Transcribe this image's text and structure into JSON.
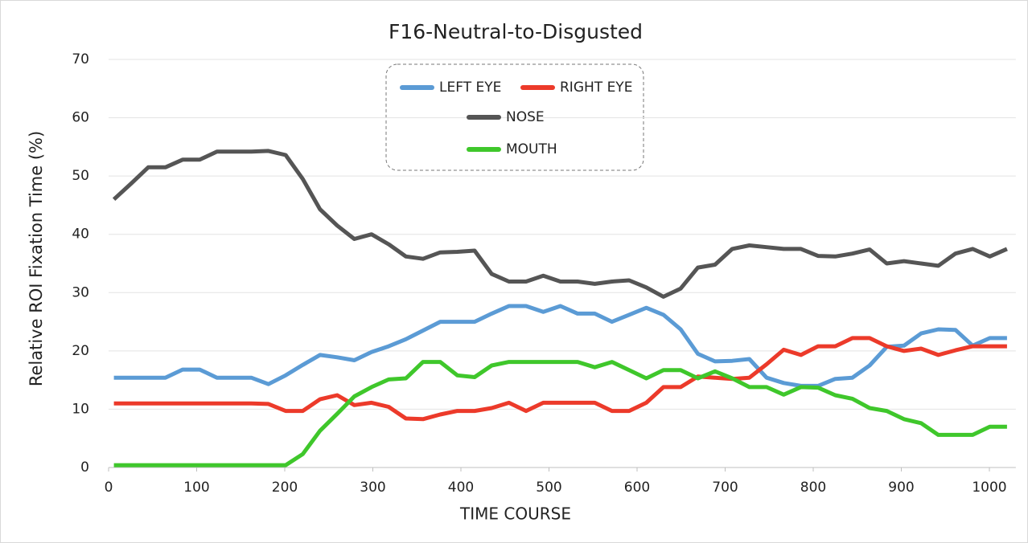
{
  "chart_data": {
    "type": "line",
    "title": "F16-Neutral-to-Disgusted",
    "x_label": "TIME  COURSE",
    "y_label": "Relative  ROI  Fixation  Time  (%)",
    "x": [
      6,
      25.5,
      45,
      64.5,
      84,
      103.5,
      123,
      142.5,
      162,
      181.5,
      201,
      220.5,
      240,
      259.5,
      279,
      298.5,
      318,
      337.5,
      357,
      376.5,
      396,
      415.5,
      435,
      454.5,
      474,
      493.5,
      513,
      532.5,
      552,
      571.5,
      591,
      610.5,
      630,
      649.5,
      669,
      688.5,
      708,
      727.5,
      747,
      766.5,
      786,
      805.5,
      825,
      844.5,
      864,
      883.5,
      903,
      922.5,
      942,
      961.5,
      981,
      1000.5,
      1020
    ],
    "series": [
      {
        "name": "LEFT EYE",
        "color": "#5b9bd5",
        "values": [
          15.4,
          15.4,
          15.4,
          15.4,
          16.8,
          16.8,
          15.4,
          15.4,
          15.4,
          14.3,
          15.8,
          17.6,
          19.3,
          18.9,
          18.4,
          19.8,
          20.8,
          22,
          23.5,
          25,
          25,
          25,
          26.4,
          27.7,
          27.7,
          26.7,
          27.7,
          26.4,
          26.4,
          25,
          26.2,
          27.4,
          26.2,
          23.7,
          19.5,
          18.2,
          18.3,
          18.6,
          15.4,
          14.5,
          14,
          14,
          15.2,
          15.4,
          17.5,
          20.7,
          20.9,
          23,
          23.7,
          23.6,
          20.9,
          22.2,
          22.2
        ]
      },
      {
        "name": "RIGHT EYE",
        "color": "#ec3a2a",
        "values": [
          11,
          11,
          11,
          11,
          11,
          11,
          11,
          11,
          11,
          10.9,
          9.7,
          9.7,
          11.7,
          12.4,
          10.7,
          11.1,
          10.4,
          8.4,
          8.3,
          9.1,
          9.7,
          9.7,
          10.2,
          11.1,
          9.7,
          11.1,
          11.1,
          11.1,
          11.1,
          9.7,
          9.7,
          11.1,
          13.8,
          13.8,
          15.6,
          15.4,
          15.2,
          15.4,
          17.7,
          20.2,
          19.3,
          20.8,
          20.8,
          22.2,
          22.2,
          20.8,
          20,
          20.4,
          19.3,
          20.1,
          20.8,
          20.8,
          20.8
        ]
      },
      {
        "name": "NOSE",
        "color": "#555555",
        "values": [
          46,
          48.7,
          51.5,
          51.5,
          52.8,
          52.8,
          54.2,
          54.2,
          54.2,
          54.3,
          53.6,
          49.5,
          44.3,
          41.5,
          39.2,
          40,
          38.3,
          36.2,
          35.8,
          36.9,
          37,
          37.2,
          33.2,
          31.9,
          31.9,
          32.9,
          31.9,
          31.9,
          31.5,
          31.9,
          32.1,
          30.9,
          29.3,
          30.7,
          34.3,
          34.8,
          37.5,
          38.1,
          37.8,
          37.5,
          37.5,
          36.3,
          36.2,
          36.7,
          37.4,
          35,
          35.4,
          35,
          34.6,
          36.7,
          37.5,
          36.2,
          37.5
        ]
      },
      {
        "name": "MOUTH",
        "color": "#3fc72b",
        "values": [
          0.4,
          0.4,
          0.4,
          0.4,
          0.4,
          0.4,
          0.4,
          0.4,
          0.4,
          0.4,
          0.4,
          2.3,
          6.3,
          9.2,
          12.2,
          13.8,
          15.1,
          15.3,
          18.1,
          18.1,
          15.8,
          15.5,
          17.5,
          18.1,
          18.1,
          18.1,
          18.1,
          18.1,
          17.2,
          18.1,
          16.7,
          15.3,
          16.7,
          16.7,
          15.3,
          16.5,
          15.3,
          13.8,
          13.8,
          12.5,
          13.8,
          13.7,
          12.4,
          11.8,
          10.2,
          9.7,
          8.3,
          7.6,
          5.6,
          5.6,
          5.6,
          7,
          7
        ]
      }
    ],
    "xlim": [
      0,
      1030
    ],
    "ylim": [
      0,
      70
    ],
    "xticks": [
      0,
      100,
      200,
      300,
      400,
      500,
      600,
      700,
      800,
      900,
      1000
    ],
    "yticks": [
      0,
      10,
      20,
      30,
      40,
      50,
      60,
      70
    ],
    "grid": true
  }
}
